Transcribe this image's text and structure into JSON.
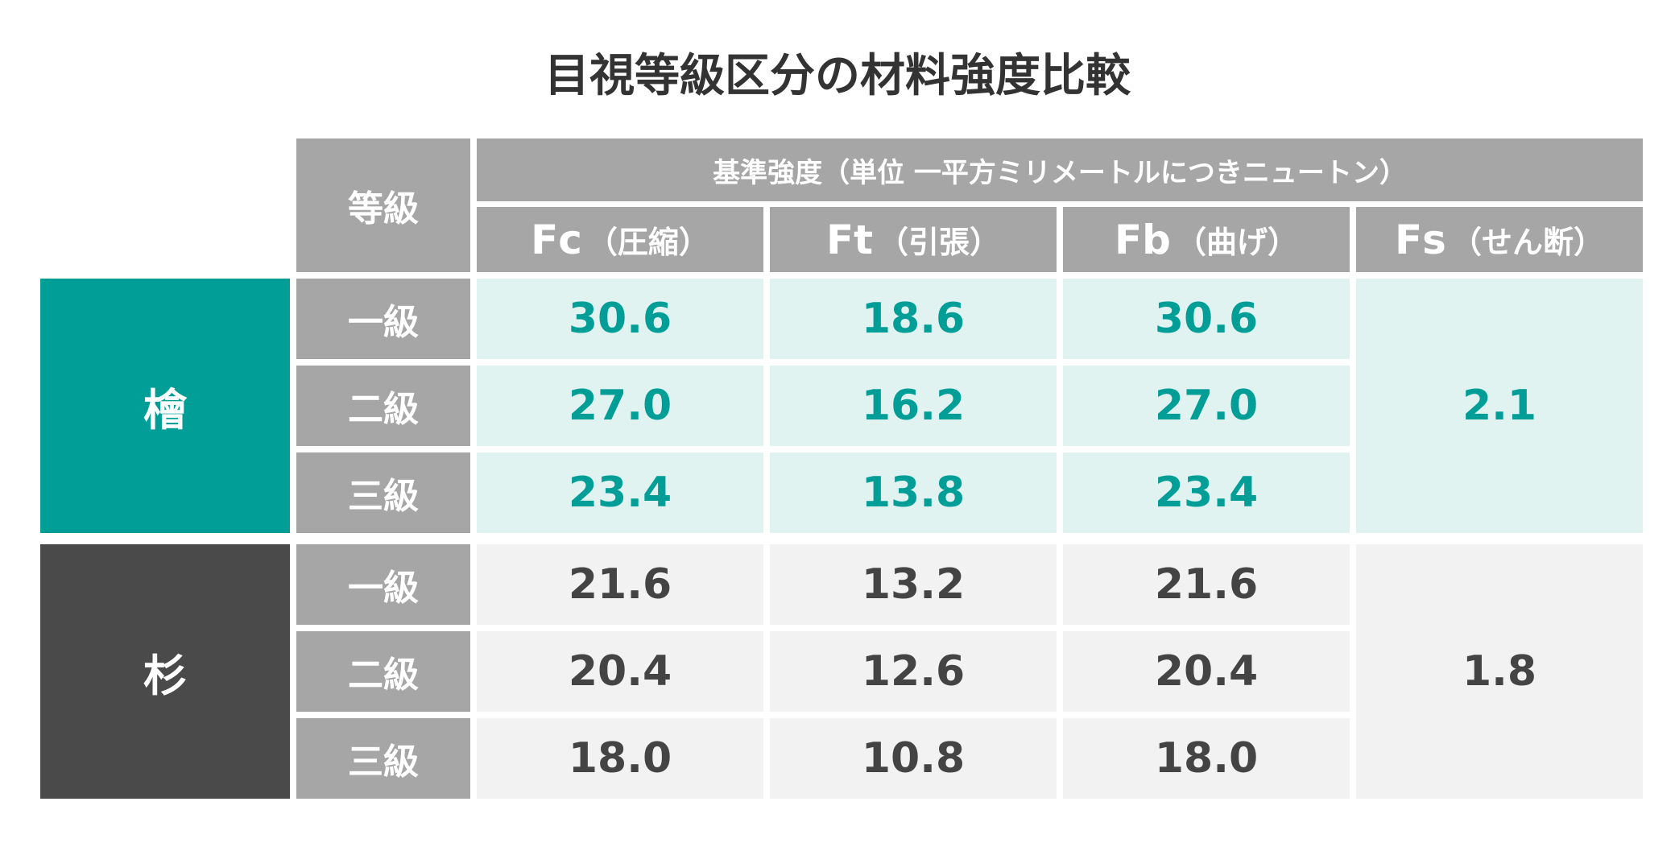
{
  "title": "目視等級区分の材料強度比較",
  "chart_data": {
    "type": "table",
    "title": "目視等級区分の材料強度比較",
    "header": {
      "grade_label": "等級",
      "group_label": "基準強度（単位 一平方ミリメートルにつきニュートン）",
      "columns": [
        {
          "symbol": "Fc",
          "desc": "（圧縮）"
        },
        {
          "symbol": "Ft",
          "desc": "（引張）"
        },
        {
          "symbol": "Fb",
          "desc": "（曲げ）"
        },
        {
          "symbol": "Fs",
          "desc": "（せん断）"
        }
      ]
    },
    "species": [
      {
        "name": "檜",
        "color": "#009e96",
        "rows": [
          {
            "grade": "一級",
            "Fc": "30.6",
            "Ft": "18.6",
            "Fb": "30.6"
          },
          {
            "grade": "二級",
            "Fc": "27.0",
            "Ft": "16.2",
            "Fb": "27.0"
          },
          {
            "grade": "三級",
            "Fc": "23.4",
            "Ft": "13.8",
            "Fb": "23.4"
          }
        ],
        "Fs": "2.1"
      },
      {
        "name": "杉",
        "color": "#4a4a4a",
        "rows": [
          {
            "grade": "一級",
            "Fc": "21.6",
            "Ft": "13.2",
            "Fb": "21.6"
          },
          {
            "grade": "二級",
            "Fc": "20.4",
            "Ft": "12.6",
            "Fb": "20.4"
          },
          {
            "grade": "三級",
            "Fc": "18.0",
            "Ft": "10.8",
            "Fb": "18.0"
          }
        ],
        "Fs": "1.8"
      }
    ]
  }
}
